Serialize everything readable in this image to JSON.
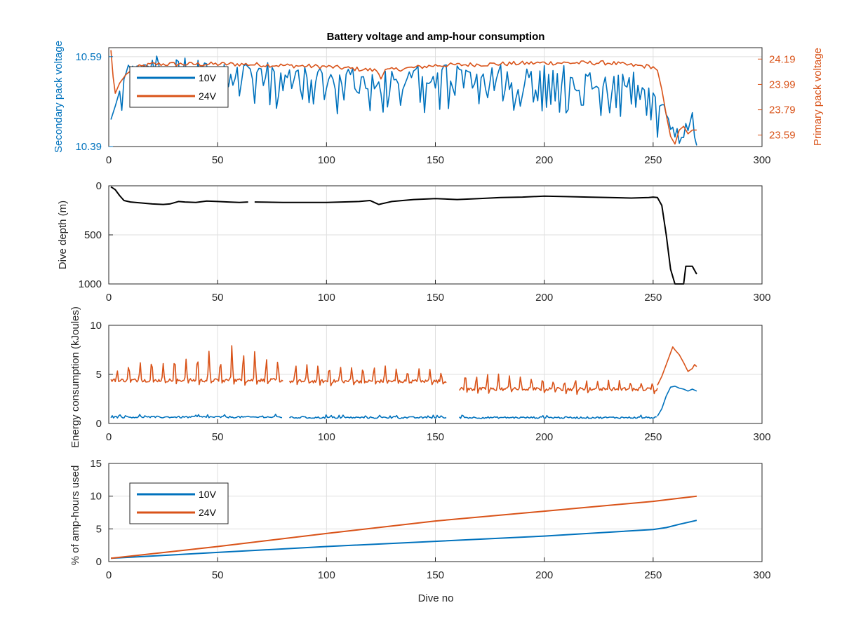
{
  "colors": {
    "blue": "#0072BD",
    "orange": "#D95319",
    "black": "#000000",
    "grid": "#dfdfdf",
    "axis": "#262626"
  },
  "chart_data": [
    {
      "type": "line",
      "title": "Battery voltage and amp-hour consumption",
      "xlabel": "",
      "ylabel_left": "Secondary pack voltage",
      "ylabel_right": "Primary pack voltage",
      "xlim": [
        0,
        300
      ],
      "x_ticks": [
        "0",
        "50",
        "100",
        "150",
        "200",
        "250",
        "300"
      ],
      "ylim_left": [
        10.39,
        10.61
      ],
      "y_ticks_left": [
        "10.39",
        "10.59"
      ],
      "ylim_right": [
        23.5,
        24.28
      ],
      "y_ticks_right": [
        "23.59",
        "23.79",
        "23.99",
        "24.19"
      ],
      "grid": true,
      "legend": {
        "position": "top-left",
        "entries": [
          "10V",
          "24V"
        ]
      },
      "series": [
        {
          "name": "10V",
          "axis": "left",
          "color": "#0072BD",
          "kind": "noisy10",
          "points": [
            [
              1,
              10.45
            ],
            [
              3,
              10.48
            ],
            [
              6,
              10.53
            ],
            [
              10,
              10.57
            ],
            [
              15,
              10.57
            ],
            [
              20,
              10.58
            ],
            [
              30,
              10.58
            ],
            [
              40,
              10.58
            ],
            [
              50,
              10.57
            ],
            [
              80,
              10.56
            ],
            [
              120,
              10.55
            ],
            [
              160,
              10.56
            ],
            [
              200,
              10.56
            ],
            [
              230,
              10.55
            ],
            [
              245,
              10.54
            ],
            [
              250,
              10.52
            ],
            [
              254,
              10.48
            ],
            [
              258,
              10.44
            ],
            [
              262,
              10.41
            ],
            [
              265,
              10.43
            ],
            [
              268,
              10.46
            ],
            [
              270,
              10.39
            ]
          ]
        },
        {
          "name": "24V",
          "axis": "right",
          "color": "#D95319",
          "kind": "smooth24",
          "points": [
            [
              1,
              24.26
            ],
            [
              2,
              24.05
            ],
            [
              3,
              23.92
            ],
            [
              5,
              24.0
            ],
            [
              8,
              24.07
            ],
            [
              12,
              24.12
            ],
            [
              20,
              24.15
            ],
            [
              40,
              24.15
            ],
            [
              60,
              24.15
            ],
            [
              100,
              24.13
            ],
            [
              123,
              24.1
            ],
            [
              125,
              24.05
            ],
            [
              127,
              24.1
            ],
            [
              150,
              24.14
            ],
            [
              200,
              24.16
            ],
            [
              230,
              24.16
            ],
            [
              240,
              24.14
            ],
            [
              250,
              24.13
            ],
            [
              252,
              24.1
            ],
            [
              254,
              23.95
            ],
            [
              256,
              23.75
            ],
            [
              258,
              23.58
            ],
            [
              260,
              23.52
            ],
            [
              262,
              23.63
            ],
            [
              264,
              23.66
            ],
            [
              266,
              23.6
            ],
            [
              268,
              23.63
            ],
            [
              270,
              23.63
            ]
          ]
        }
      ]
    },
    {
      "type": "line",
      "title": "",
      "xlabel": "",
      "ylabel": "Dive depth (m)",
      "xlim": [
        0,
        300
      ],
      "x_ticks": [
        "0",
        "50",
        "100",
        "150",
        "200",
        "250",
        "300"
      ],
      "ylim": [
        0,
        1000
      ],
      "y_reversed": true,
      "y_ticks": [
        "0",
        "500",
        "1000"
      ],
      "grid": true,
      "series": [
        {
          "name": "",
          "color": "#000000",
          "points": [
            [
              1,
              10
            ],
            [
              3,
              40
            ],
            [
              5,
              100
            ],
            [
              7,
              150
            ],
            [
              10,
              165
            ],
            [
              15,
              175
            ],
            [
              20,
              185
            ],
            [
              25,
              190
            ],
            [
              28,
              185
            ],
            [
              32,
              160
            ],
            [
              35,
              165
            ],
            [
              40,
              170
            ],
            [
              45,
              155
            ],
            [
              50,
              160
            ],
            [
              55,
              165
            ],
            [
              60,
              170
            ],
            [
              64,
              165
            ],
            [
              66,
              null
            ],
            [
              67,
              165
            ],
            [
              80,
              170
            ],
            [
              100,
              170
            ],
            [
              115,
              160
            ],
            [
              120,
              150
            ],
            [
              122,
              170
            ],
            [
              124,
              190
            ],
            [
              126,
              180
            ],
            [
              130,
              160
            ],
            [
              140,
              140
            ],
            [
              150,
              130
            ],
            [
              160,
              140
            ],
            [
              170,
              130
            ],
            [
              180,
              120
            ],
            [
              190,
              115
            ],
            [
              200,
              105
            ],
            [
              210,
              110
            ],
            [
              220,
              115
            ],
            [
              230,
              120
            ],
            [
              240,
              125
            ],
            [
              248,
              120
            ],
            [
              250,
              115
            ],
            [
              252,
              120
            ],
            [
              254,
              200
            ],
            [
              256,
              500
            ],
            [
              258,
              850
            ],
            [
              260,
              1000
            ],
            [
              262,
              1000
            ],
            [
              264,
              1000
            ],
            [
              265,
              820
            ],
            [
              268,
              820
            ],
            [
              270,
              900
            ]
          ]
        }
      ]
    },
    {
      "type": "line",
      "title": "",
      "xlabel": "",
      "ylabel": "Energy consumption (kJoules)",
      "xlim": [
        0,
        300
      ],
      "x_ticks": [
        "0",
        "50",
        "100",
        "150",
        "200",
        "250",
        "300"
      ],
      "ylim": [
        0,
        10
      ],
      "y_ticks": [
        "0",
        "5",
        "10"
      ],
      "grid": true,
      "series": [
        {
          "name": "",
          "color": "#D95319",
          "kind": "spiky",
          "segments": [
            {
              "x0": 1,
              "x1": 80,
              "base": 4.4,
              "amp": [
                1.1,
                1.9,
                2.2,
                2.4,
                1.7,
                2.6,
                2.1,
                2.9,
                3.0,
                2.4,
                4.0,
                3.6,
                3.4,
                2.5,
                2.2
              ]
            },
            {
              "x0": 83,
              "x1": 155,
              "base": 4.3,
              "amp": [
                2.1,
                1.6,
                1.7,
                1.8,
                1.7,
                1.5,
                1.6,
                1.8,
                1.6,
                1.4,
                1.5,
                1.5,
                1.4,
                1.2
              ]
            },
            {
              "x0": 161,
              "x1": 252,
              "base": 3.5,
              "amp": [
                2.0,
                1.8,
                1.7,
                1.6,
                1.5,
                1.4,
                1.4,
                1.3,
                1.2,
                1.2,
                1.1,
                1.0,
                1.0,
                0.9,
                0.8,
                0.8,
                0.7,
                0.7
              ]
            },
            {
              "x0": 252,
              "x1": 270,
              "points": [
                [
                  252,
                  3.9
                ],
                [
                  254,
                  4.8
                ],
                [
                  256,
                  6.0
                ],
                [
                  258,
                  7.2
                ],
                [
                  259,
                  7.8
                ],
                [
                  260,
                  7.5
                ],
                [
                  262,
                  7.0
                ],
                [
                  264,
                  6.2
                ],
                [
                  266,
                  5.3
                ],
                [
                  268,
                  5.6
                ],
                [
                  269,
                  6.0
                ],
                [
                  270,
                  5.8
                ]
              ]
            }
          ]
        },
        {
          "name": "",
          "color": "#0072BD",
          "kind": "flatnoise",
          "segments": [
            {
              "x0": 1,
              "x1": 80,
              "base": 0.65
            },
            {
              "x0": 83,
              "x1": 155,
              "base": 0.6
            },
            {
              "x0": 161,
              "x1": 252,
              "base": 0.6
            },
            {
              "x0": 252,
              "x1": 270,
              "points": [
                [
                  252,
                  0.75
                ],
                [
                  254,
                  1.5
                ],
                [
                  256,
                  2.8
                ],
                [
                  258,
                  3.7
                ],
                [
                  260,
                  3.8
                ],
                [
                  262,
                  3.6
                ],
                [
                  264,
                  3.5
                ],
                [
                  266,
                  3.3
                ],
                [
                  268,
                  3.5
                ],
                [
                  270,
                  3.3
                ]
              ]
            }
          ]
        }
      ]
    },
    {
      "type": "line",
      "title": "",
      "xlabel": "Dive no",
      "ylabel": "% of amp-hours used",
      "xlim": [
        0,
        300
      ],
      "x_ticks": [
        "0",
        "50",
        "100",
        "150",
        "200",
        "250",
        "300"
      ],
      "ylim": [
        0,
        15
      ],
      "y_ticks": [
        "0",
        "5",
        "10",
        "15"
      ],
      "grid": true,
      "legend": {
        "position": "top-left",
        "entries": [
          "10V",
          "24V"
        ]
      },
      "series": [
        {
          "name": "10V",
          "color": "#0072BD",
          "points": [
            [
              1,
              0.5
            ],
            [
              50,
              1.4
            ],
            [
              100,
              2.3
            ],
            [
              150,
              3.1
            ],
            [
              200,
              3.9
            ],
            [
              250,
              4.9
            ],
            [
              256,
              5.2
            ],
            [
              262,
              5.7
            ],
            [
              270,
              6.3
            ]
          ]
        },
        {
          "name": "24V",
          "color": "#D95319",
          "points": [
            [
              1,
              0.5
            ],
            [
              50,
              2.3
            ],
            [
              100,
              4.3
            ],
            [
              150,
              6.2
            ],
            [
              200,
              7.7
            ],
            [
              250,
              9.2
            ],
            [
              260,
              9.6
            ],
            [
              270,
              10.0
            ]
          ]
        }
      ]
    }
  ]
}
